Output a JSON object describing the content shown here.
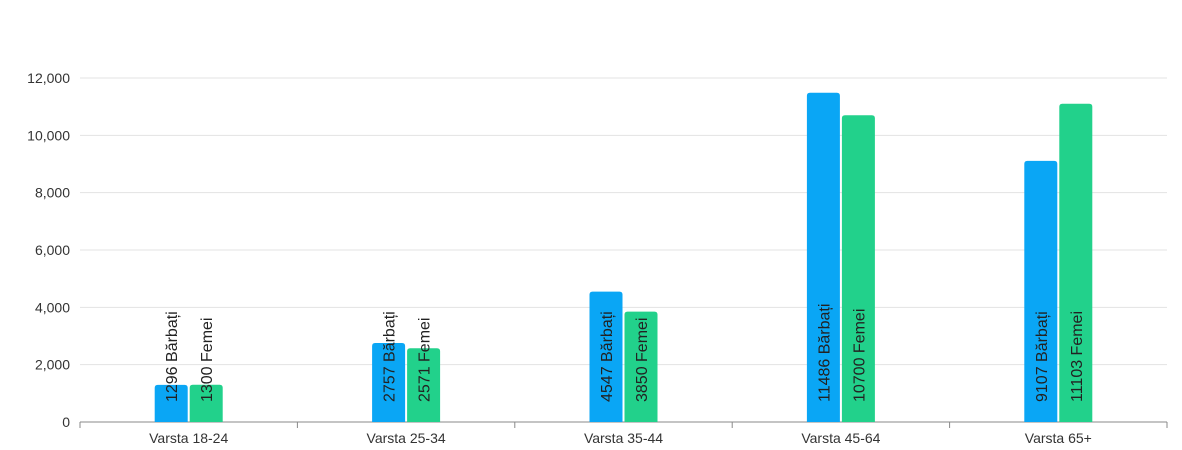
{
  "chart_data": {
    "type": "bar",
    "categories": [
      "Varsta 18-24",
      "Varsta 25-34",
      "Varsta 35-44",
      "Varsta 45-64",
      "Varsta 65+"
    ],
    "series": [
      {
        "values": [
          1296,
          2757,
          4547,
          11486,
          9107
        ],
        "labels": [
          "1296 Bărbați",
          "2757 Bărbați",
          "4547 Bărbați",
          "11486 Bărbați",
          "9107 Bărbați"
        ],
        "color": "#0aa6f5"
      },
      {
        "values": [
          1300,
          2571,
          3850,
          10700,
          11103
        ],
        "labels": [
          "1300 Femei",
          "2571 Femei",
          "3850 Femei",
          "10700 Femei",
          "11103 Femei"
        ],
        "color": "#22d18b"
      }
    ],
    "yticks": [
      0,
      2000,
      4000,
      6000,
      8000,
      10000,
      12000
    ],
    "ytick_labels": [
      "0",
      "2,000",
      "4,000",
      "6,000",
      "8,000",
      "10,000",
      "12,000"
    ],
    "ylim": [
      0,
      12000
    ],
    "grid": true,
    "legend": false,
    "title": "",
    "xlabel": "",
    "ylabel": ""
  }
}
